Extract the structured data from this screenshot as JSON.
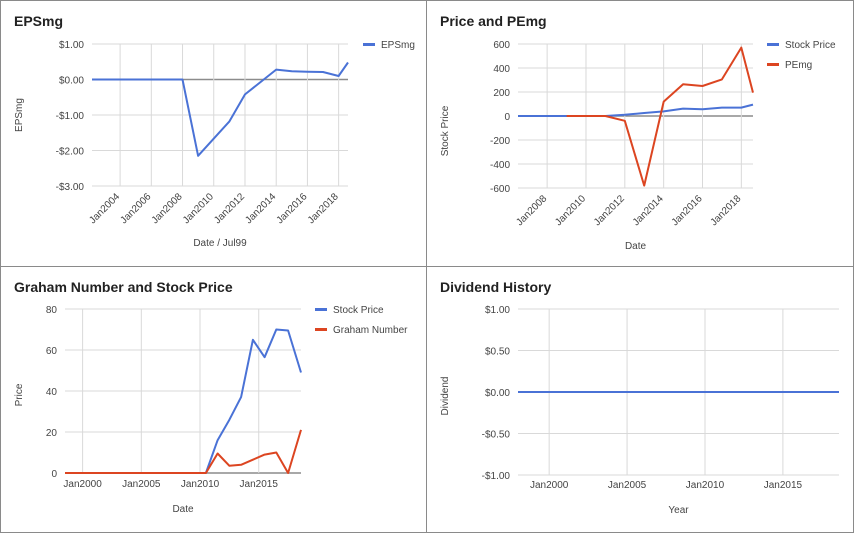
{
  "colors": {
    "blue": "#4a72d6",
    "red": "#dc4521",
    "grid": "#d9d9d9",
    "zero": "#8c8c8c",
    "text": "#444444"
  },
  "chart_data": [
    {
      "type": "line",
      "title": "EPSmg",
      "xlabel": "Date / Jul99",
      "ylabel": "EPSmg",
      "ylim": [
        -3,
        1
      ],
      "yticks": [
        1,
        0,
        -1,
        -2,
        -3
      ],
      "ytick_labels": [
        "$1.00",
        "$0.00",
        "-$1.00",
        "-$2.00",
        "-$3.00"
      ],
      "xlim": [
        2002.2,
        2018.6
      ],
      "xticks": [
        2004,
        2006,
        2008,
        2010,
        2012,
        2014,
        2016,
        2018
      ],
      "xtick_labels": [
        "Jan2004",
        "Jan2006",
        "Jan2008",
        "Jan2010",
        "Jan2012",
        "Jan2014",
        "Jan2016",
        "Jan2018"
      ],
      "grid": true,
      "legend": "right",
      "series": [
        {
          "name": "EPSmg",
          "color": "#4a72d6",
          "x": [
            2002.2,
            2008,
            2009,
            2011,
            2012,
            2014,
            2015,
            2016,
            2017,
            2018,
            2018.6
          ],
          "y": [
            0,
            0,
            -2.15,
            -1.18,
            -0.42,
            0.28,
            0.23,
            0.22,
            0.21,
            0.1,
            0.48
          ]
        }
      ]
    },
    {
      "type": "line",
      "title": "Price and PEmg",
      "xlabel": "Date",
      "ylabel": "Stock Price",
      "ylim": [
        -600,
        600
      ],
      "yticks": [
        600,
        400,
        200,
        0,
        -200,
        -400,
        -600
      ],
      "ytick_labels": [
        "600",
        "400",
        "200",
        "0",
        "-200",
        "-400",
        "-600"
      ],
      "xlim": [
        2006.5,
        2018.6
      ],
      "xticks": [
        2008,
        2010,
        2012,
        2014,
        2016,
        2018
      ],
      "xtick_labels": [
        "Jan2008",
        "Jan2010",
        "Jan2012",
        "Jan2014",
        "Jan2016",
        "Jan2018"
      ],
      "grid": true,
      "legend": "right",
      "series": [
        {
          "name": "Stock Price",
          "color": "#4a72d6",
          "x": [
            2006.5,
            2011,
            2012,
            2013,
            2014,
            2015,
            2016,
            2017,
            2018,
            2018.6
          ],
          "y": [
            0,
            0,
            10,
            25,
            38,
            62,
            57,
            70,
            70,
            95
          ]
        },
        {
          "name": "PEmg",
          "color": "#dc4521",
          "x": [
            2009,
            2011,
            2012,
            2013,
            2014,
            2015,
            2016,
            2017,
            2018,
            2018.6
          ],
          "y": [
            0,
            0,
            -40,
            -580,
            120,
            265,
            250,
            305,
            570,
            195
          ]
        }
      ]
    },
    {
      "type": "line",
      "title": "Graham Number and Stock Price",
      "xlabel": "Date",
      "ylabel": "Price",
      "ylim": [
        0,
        80
      ],
      "yticks": [
        80,
        60,
        40,
        20,
        0
      ],
      "ytick_labels": [
        "80",
        "60",
        "40",
        "20",
        "0"
      ],
      "xlim": [
        1998.5,
        2018.6
      ],
      "xticks": [
        2000,
        2005,
        2010,
        2015
      ],
      "xtick_labels": [
        "Jan2000",
        "Jan2005",
        "Jan2010",
        "Jan2015"
      ],
      "grid": true,
      "legend": "right",
      "series": [
        {
          "name": "Stock Price",
          "color": "#4a72d6",
          "x": [
            1998.5,
            2010.5,
            2011.5,
            2012.5,
            2013.5,
            2014.5,
            2015.5,
            2016.5,
            2017.5,
            2018.6
          ],
          "y": [
            0,
            0,
            16,
            26,
            37,
            65,
            56.5,
            70,
            69.5,
            49
          ]
        },
        {
          "name": "Graham Number",
          "color": "#dc4521",
          "x": [
            1998.5,
            2010.5,
            2011.5,
            2012.5,
            2013.5,
            2014.5,
            2015.5,
            2016.5,
            2017.5,
            2018.6
          ],
          "y": [
            0,
            0,
            9.5,
            3.5,
            4,
            6.5,
            9,
            10,
            0,
            21
          ]
        }
      ]
    },
    {
      "type": "line",
      "title": "Dividend History",
      "xlabel": "Year",
      "ylabel": "Dividend",
      "ylim": [
        -1,
        1
      ],
      "yticks": [
        1,
        0.5,
        0,
        -0.5,
        -1
      ],
      "ytick_labels": [
        "$1.00",
        "$0.50",
        "$0.00",
        "-$0.50",
        "-$1.00"
      ],
      "xlim": [
        1998,
        2018.6
      ],
      "xticks": [
        2000,
        2005,
        2010,
        2015
      ],
      "xtick_labels": [
        "Jan2000",
        "Jan2005",
        "Jan2010",
        "Jan2015"
      ],
      "grid": true,
      "series": [
        {
          "color": "#4a72d6",
          "x": [
            1998,
            2018.6
          ],
          "y": [
            0,
            0
          ]
        }
      ]
    }
  ]
}
